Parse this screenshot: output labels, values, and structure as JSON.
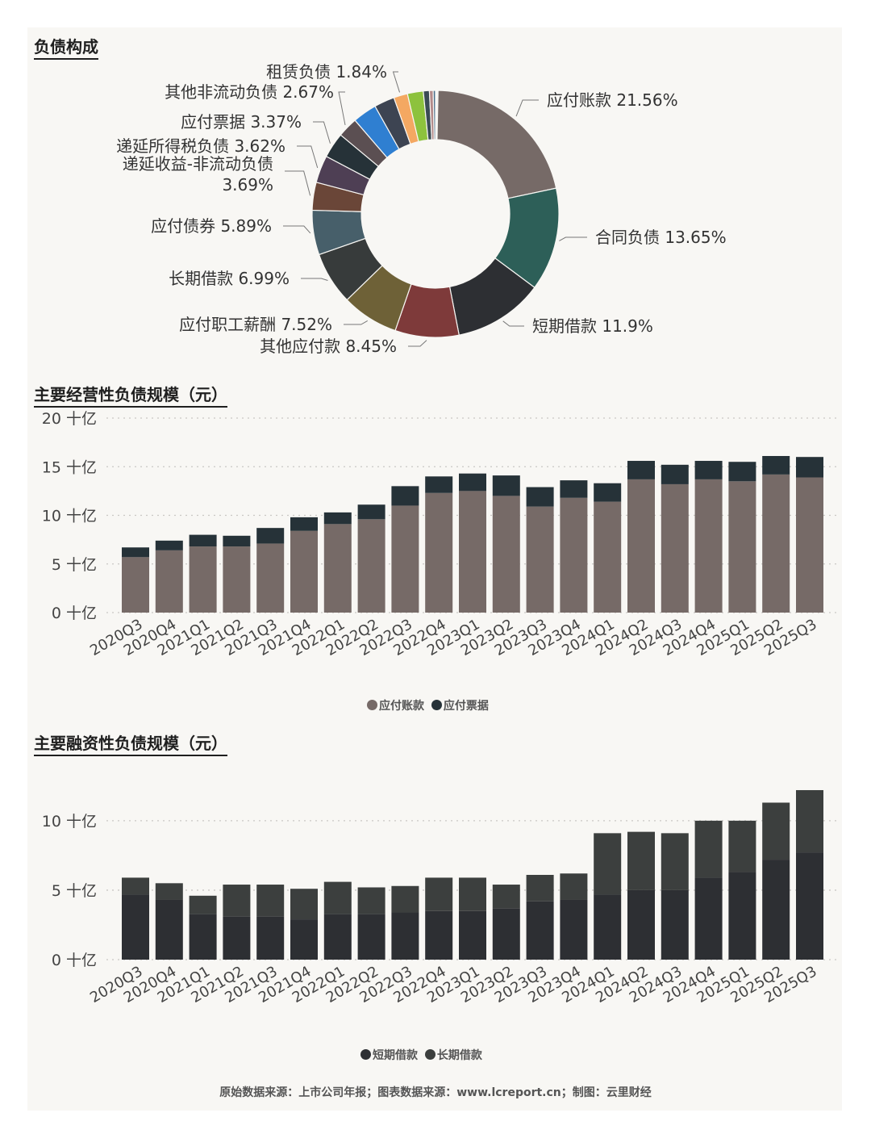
{
  "titles": {
    "composition": "负债构成",
    "operating": "主要经营性负债规模（元）",
    "financing": "主要融资性负债规模（元）"
  },
  "footer": "原始数据来源：上市公司年报；图表数据来源：www.lcreport.cn；制图：云里财经",
  "chart_data": [
    {
      "type": "pie",
      "title": "负债构成",
      "slices": [
        {
          "label": "应付账款",
          "value": 21.56,
          "text": "应付账款 21.56%",
          "color": "#766a67"
        },
        {
          "label": "合同负债",
          "value": 13.65,
          "text": "合同负债 13.65%",
          "color": "#2d5f58"
        },
        {
          "label": "短期借款",
          "value": 11.9,
          "text": "短期借款 11.9%",
          "color": "#2d2f33"
        },
        {
          "label": "其他应付款",
          "value": 8.45,
          "text": "其他应付款 8.45%",
          "color": "#7e3a3a"
        },
        {
          "label": "应付职工薪酬",
          "value": 7.52,
          "text": "应付职工薪酬 7.52%",
          "color": "#6e6137"
        },
        {
          "label": "长期借款",
          "value": 6.99,
          "text": "长期借款 6.99%",
          "color": "#373b3b"
        },
        {
          "label": "应付债券",
          "value": 5.89,
          "text": "应付债券 5.89%",
          "color": "#475f6a"
        },
        {
          "label": "递延收益-非流动负债",
          "value": 3.69,
          "text": "递延收益-非流动负债 3.69%",
          "text_lines": [
            "递延收益-非流动负债",
            "3.69%"
          ],
          "color": "#6a4638"
        },
        {
          "label": "递延所得税负债",
          "value": 3.62,
          "text": "递延所得税负债 3.62%",
          "color": "#4e3f54"
        },
        {
          "label": "应付票据",
          "value": 3.37,
          "text": "应付票据 3.37%",
          "color": "#263238"
        },
        {
          "label": "其他非流动负债",
          "value": 2.67,
          "text": "其他非流动负债 2.67%",
          "color": "#5b4f52"
        },
        {
          "label": "",
          "value": 3.2,
          "text": "",
          "color": "#2f7fd1"
        },
        {
          "label": "",
          "value": 2.7,
          "text": "",
          "color": "#3d4452"
        },
        {
          "label": "租赁负债",
          "value": 1.84,
          "text": "租赁负债 1.84%",
          "color": "#f4a862"
        },
        {
          "label": "",
          "value": 2.1,
          "text": "",
          "color": "#8dc23d"
        },
        {
          "label": "",
          "value": 0.8,
          "text": "",
          "color": "#3a4b55"
        },
        {
          "label": "",
          "value": 0.5,
          "text": "",
          "color": "#b38a8a"
        },
        {
          "label": "",
          "value": 0.3,
          "text": "",
          "color": "#4a6e8a"
        }
      ]
    },
    {
      "type": "bar",
      "stacked": true,
      "title": "主要经营性负债规模（元）",
      "categories": [
        "2020Q3",
        "2020Q4",
        "2021Q1",
        "2021Q2",
        "2021Q3",
        "2021Q4",
        "2022Q1",
        "2022Q2",
        "2022Q3",
        "2022Q4",
        "2023Q1",
        "2023Q2",
        "2023Q3",
        "2023Q4",
        "2024Q1",
        "2024Q2",
        "2024Q3",
        "2024Q4",
        "2025Q1",
        "2025Q2",
        "2025Q3"
      ],
      "series": [
        {
          "name": "应付账款",
          "color": "#766a67",
          "values": [
            5.7,
            6.4,
            6.8,
            6.8,
            7.1,
            8.4,
            9.1,
            9.6,
            11.0,
            12.3,
            12.5,
            12.0,
            10.9,
            11.8,
            11.4,
            13.7,
            13.2,
            13.7,
            13.5,
            14.2,
            13.9
          ]
        },
        {
          "name": "应付票据",
          "color": "#263238",
          "values": [
            1.0,
            1.0,
            1.2,
            1.1,
            1.6,
            1.4,
            1.2,
            1.5,
            2.0,
            1.7,
            1.8,
            2.1,
            2.0,
            1.8,
            1.9,
            1.9,
            2.0,
            1.9,
            2.0,
            1.9,
            2.1
          ]
        }
      ],
      "y_ticks": [
        "0 十亿",
        "5 十亿",
        "10 十亿",
        "15 十亿",
        "20 十亿"
      ],
      "y_tick_values": [
        0,
        5,
        10,
        15,
        20
      ],
      "ylim": [
        0,
        20
      ],
      "grid": true,
      "legend": "bottom"
    },
    {
      "type": "bar",
      "stacked": true,
      "title": "主要融资性负债规模（元）",
      "categories": [
        "2020Q3",
        "2020Q4",
        "2021Q1",
        "2021Q2",
        "2021Q3",
        "2021Q4",
        "2022Q1",
        "2022Q2",
        "2022Q3",
        "2022Q4",
        "2023Q1",
        "2023Q2",
        "2023Q3",
        "2023Q4",
        "2024Q1",
        "2024Q2",
        "2024Q3",
        "2024Q4",
        "2025Q1",
        "2025Q2",
        "2025Q3"
      ],
      "series": [
        {
          "name": "短期借款",
          "color": "#2d2f33",
          "values": [
            4.7,
            4.3,
            3.3,
            3.1,
            3.1,
            2.9,
            3.3,
            3.3,
            3.4,
            3.5,
            3.5,
            3.7,
            4.2,
            4.3,
            4.7,
            5.0,
            5.0,
            5.9,
            6.3,
            7.2,
            7.7
          ]
        },
        {
          "name": "长期借款",
          "color": "#3c3f3e",
          "values": [
            1.2,
            1.2,
            1.3,
            2.3,
            2.3,
            2.2,
            2.3,
            1.9,
            1.9,
            2.4,
            2.4,
            1.7,
            1.9,
            1.9,
            4.4,
            4.2,
            4.1,
            4.1,
            3.7,
            4.1,
            4.5
          ]
        }
      ],
      "y_ticks": [
        "0 十亿",
        "5 十亿",
        "10 十亿"
      ],
      "y_tick_values": [
        0,
        5,
        10
      ],
      "ylim": [
        0,
        14
      ],
      "grid": true,
      "legend": "bottom"
    }
  ]
}
